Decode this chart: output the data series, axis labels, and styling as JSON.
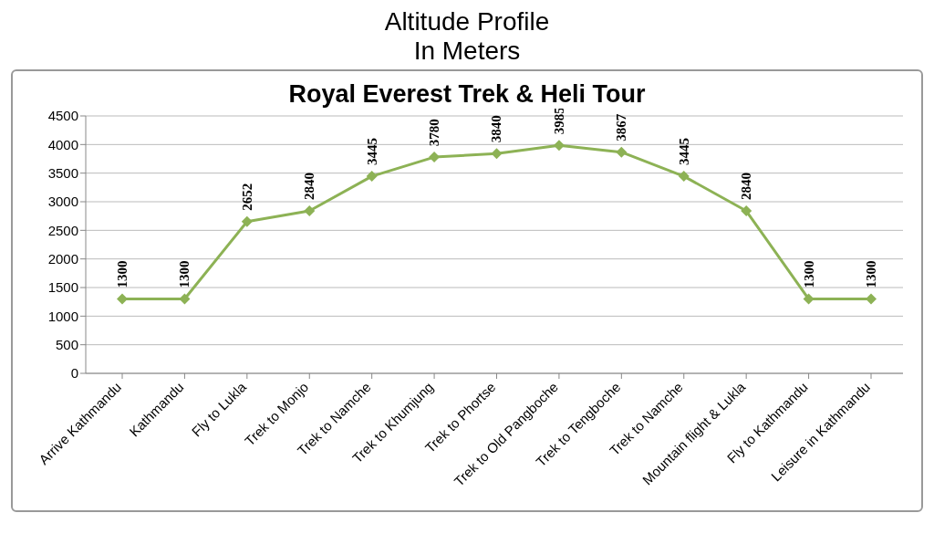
{
  "chart_data": {
    "type": "line",
    "title": "Altitude Profile\nIn Meters",
    "subtitle": "Royal Everest Trek & Heli Tour",
    "categories": [
      "Arrive Kathmandu",
      "Kathmandu",
      "Fly to Lukla",
      "Trek to Monjo",
      "Trek to Namche",
      "Trek to Khumjung",
      "Trek to Phortse",
      "Trek to Old Pangboche",
      "Trek to Tengboche",
      "Trek to Namche",
      "Mountain flight & Lukla",
      "Fly to Kathmandu",
      "Leisure in Kathmandu"
    ],
    "series": [
      {
        "color": "#8db255",
        "values": [
          1300,
          1300,
          2652,
          2840,
          3445,
          3780,
          3840,
          3985,
          3867,
          3445,
          2840,
          1300,
          1300
        ]
      }
    ],
    "ylim": [
      0,
      4500
    ],
    "yticks": [
      0,
      500,
      1000,
      1500,
      2000,
      2500,
      3000,
      3500,
      4000,
      4500
    ],
    "grid": "y",
    "marker": "diamond",
    "line_style": "solid",
    "data_labels": true,
    "legend": false
  }
}
